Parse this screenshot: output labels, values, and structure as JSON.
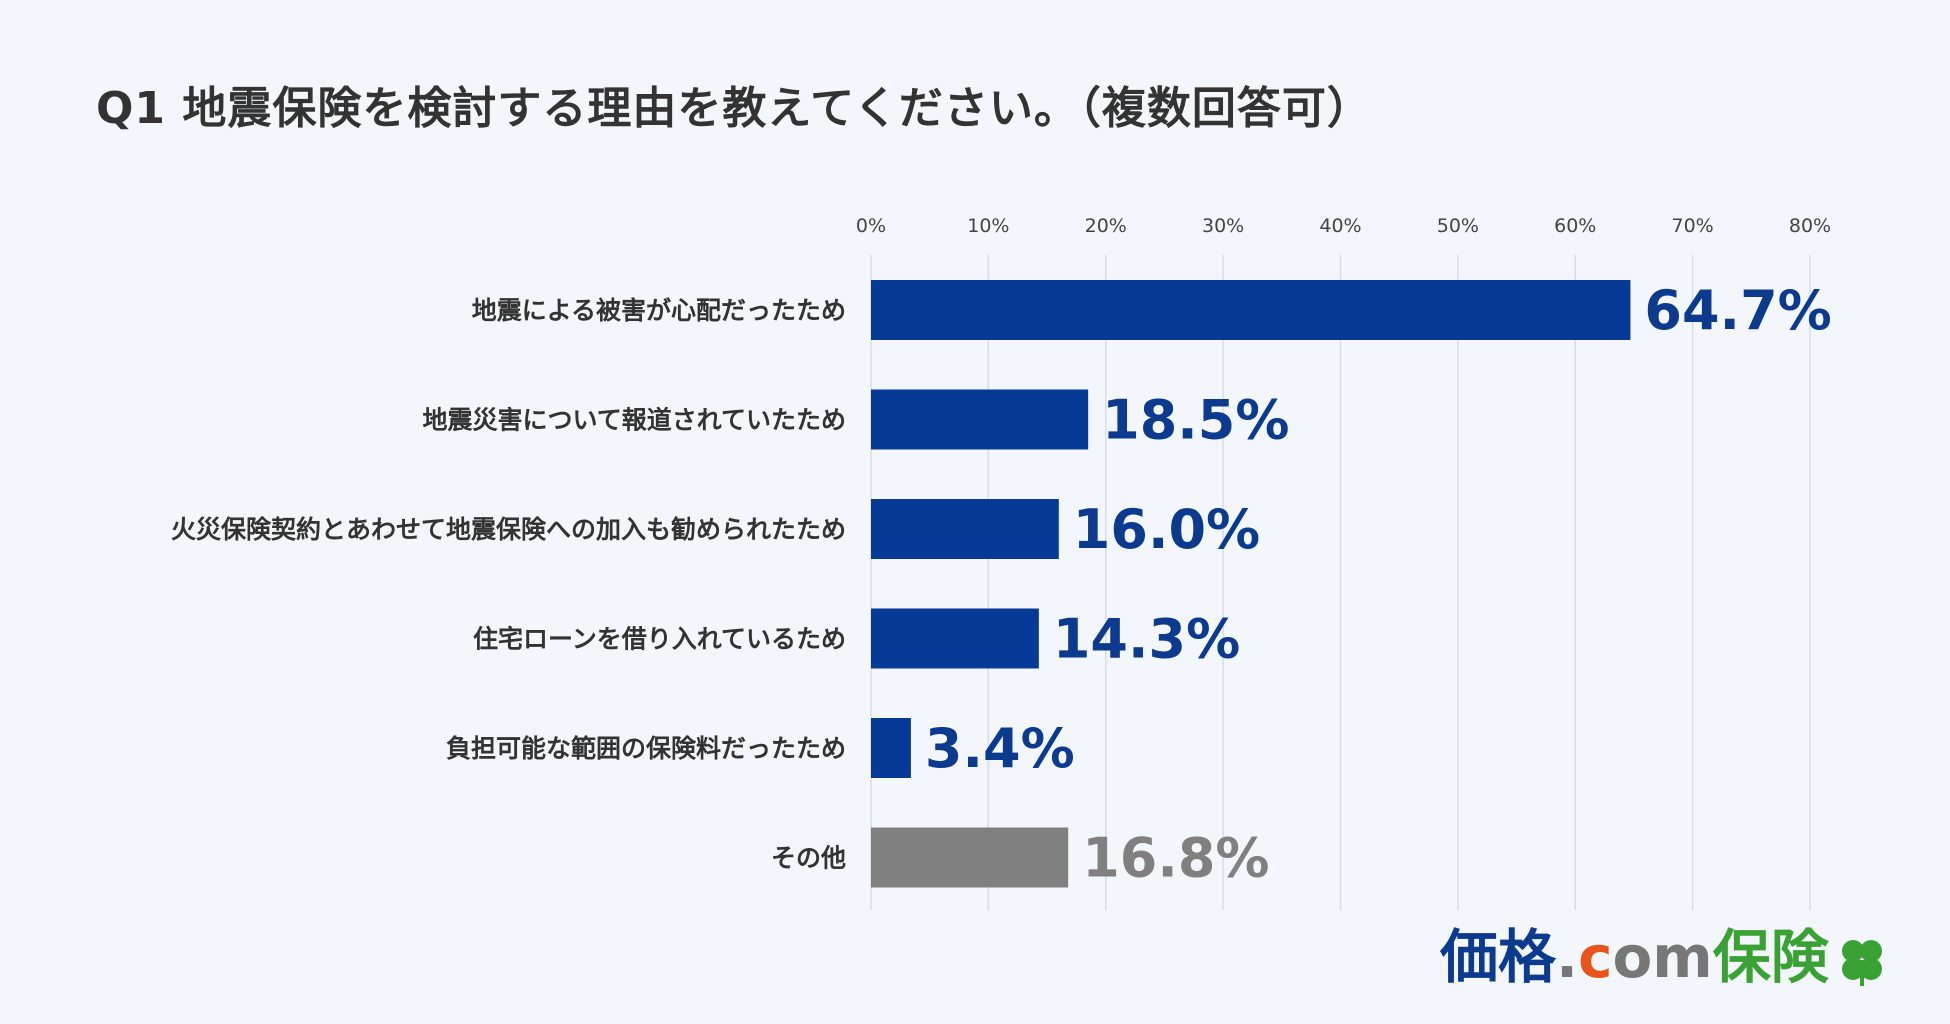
{
  "title": "Q1  地震保険を検討する理由を教えてください。（複数回答可）",
  "logo": {
    "kakaku": "価格",
    "dot": ".",
    "c": "c",
    "om": "om",
    "hoken": "保険"
  },
  "colors": {
    "main_bar": "#063a96",
    "other_bar": "#808080",
    "main_label": "#0b3a8e",
    "other_label": "#808080",
    "grid": "#d8dde6",
    "logo_green": "#3aa234"
  },
  "chart_data": {
    "type": "bar",
    "orientation": "horizontal",
    "categories": [
      "地震による被害が心配だったため",
      "地震災害について報道されていたため",
      "火災保険契約とあわせて地震保険への加入も勧められたため",
      "住宅ローンを借り入れているため",
      "負担可能な範囲の保険料だったため",
      "その他"
    ],
    "values": [
      64.7,
      18.5,
      16.0,
      14.3,
      3.4,
      16.8
    ],
    "value_labels": [
      "64.7%",
      "18.5%",
      "16.0%",
      "14.3%",
      "3.4%",
      "16.8%"
    ],
    "xlim": [
      0,
      80
    ],
    "xticks": [
      "0%",
      "10%",
      "20%",
      "30%",
      "40%",
      "50%",
      "60%",
      "70%",
      "80%"
    ],
    "grid": true,
    "legend": "none"
  }
}
